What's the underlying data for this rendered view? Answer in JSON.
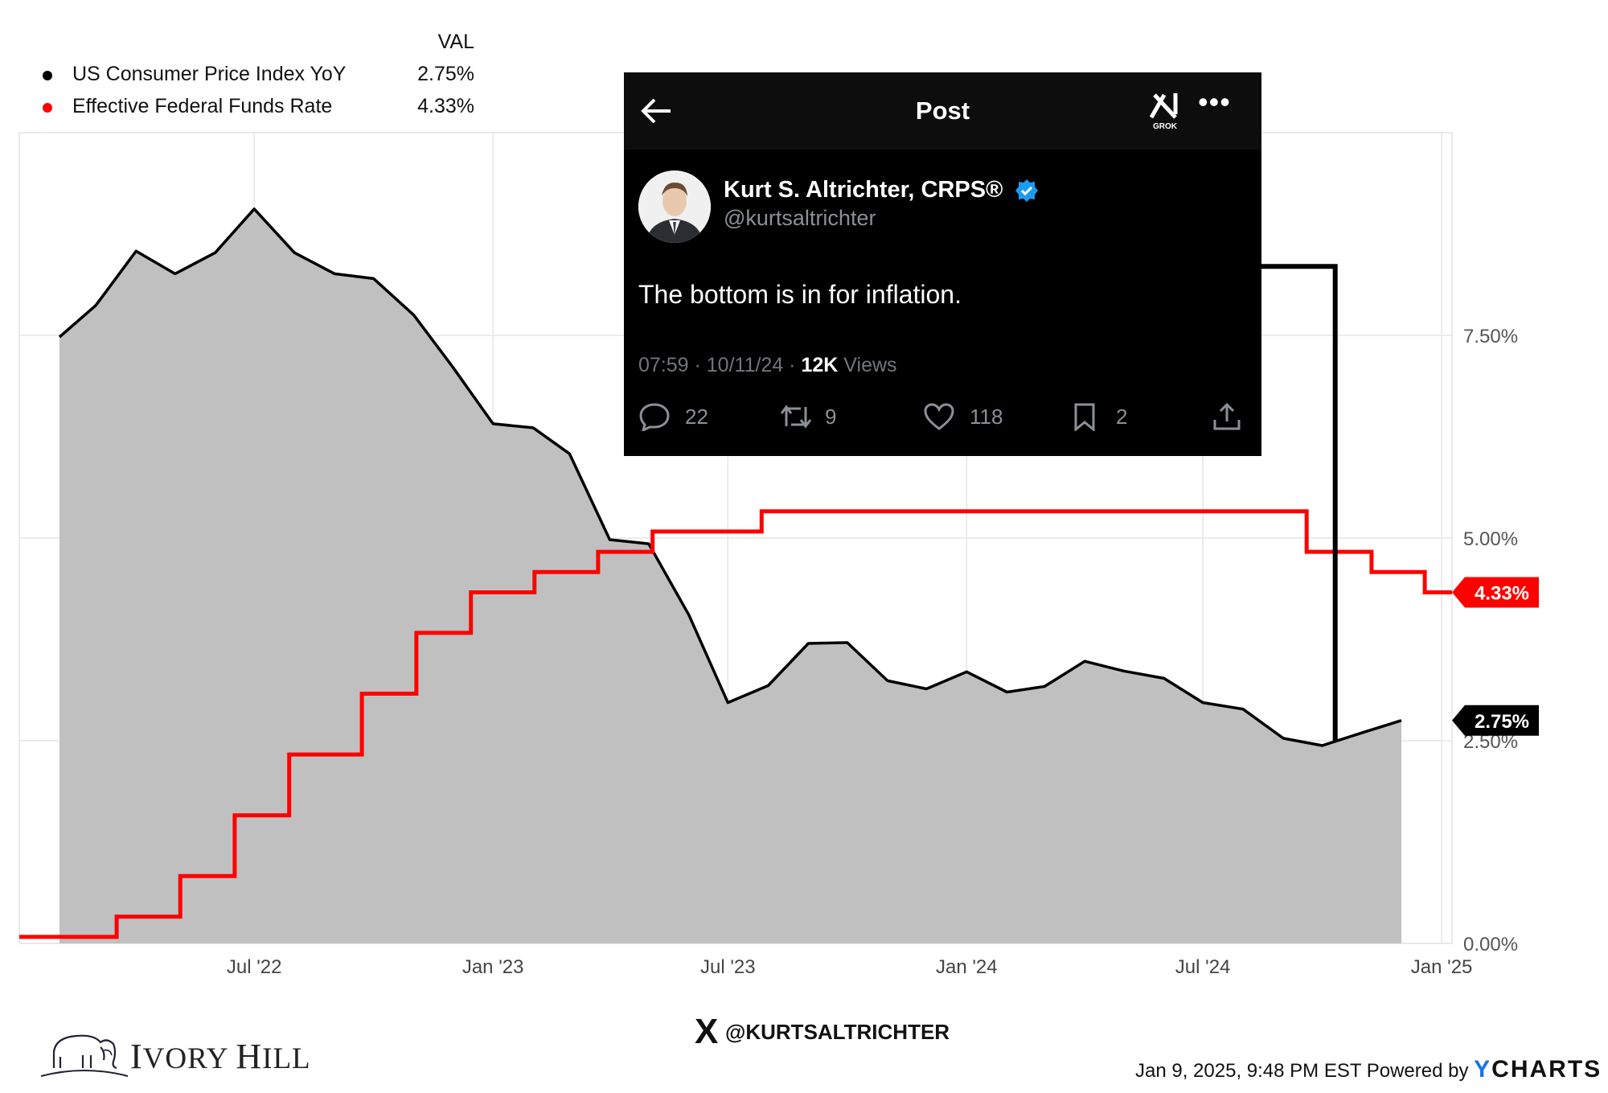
{
  "chart_data": {
    "type": "line",
    "title": "",
    "xlabel": "",
    "ylabel": "",
    "x_ticks": [
      "Jul '22",
      "Jan '23",
      "Jul '23",
      "Jan '24",
      "Jul '24",
      "Jan '25"
    ],
    "y_ticks": [
      "0.00%",
      "2.50%",
      "5.00%",
      "7.50%"
    ],
    "ylim": [
      0,
      10
    ],
    "grid": true,
    "legend_position": "top-left",
    "series": [
      {
        "name": "US Consumer Price Index YoY",
        "color": "#000000",
        "fill": "#c0c0c0",
        "last_value": "2.75%",
        "points": [
          [
            "2022-02-01",
            7.48
          ],
          [
            "2022-03-01",
            7.87
          ],
          [
            "2022-04-01",
            8.54
          ],
          [
            "2022-05-01",
            8.26
          ],
          [
            "2022-06-01",
            8.52
          ],
          [
            "2022-07-01",
            9.06
          ],
          [
            "2022-08-01",
            8.52
          ],
          [
            "2022-09-01",
            8.26
          ],
          [
            "2022-10-01",
            8.2
          ],
          [
            "2022-11-01",
            7.75
          ],
          [
            "2022-12-01",
            7.11
          ],
          [
            "2023-01-01",
            6.41
          ],
          [
            "2023-02-01",
            6.36
          ],
          [
            "2023-03-01",
            6.04
          ],
          [
            "2023-04-01",
            4.98
          ],
          [
            "2023-05-01",
            4.93
          ],
          [
            "2023-06-01",
            4.05
          ],
          [
            "2023-07-01",
            2.97
          ],
          [
            "2023-08-01",
            3.18
          ],
          [
            "2023-09-01",
            3.7
          ],
          [
            "2023-10-01",
            3.71
          ],
          [
            "2023-11-01",
            3.24
          ],
          [
            "2023-12-01",
            3.14
          ],
          [
            "2024-01-01",
            3.35
          ],
          [
            "2024-02-01",
            3.1
          ],
          [
            "2024-03-01",
            3.17
          ],
          [
            "2024-04-01",
            3.48
          ],
          [
            "2024-05-01",
            3.36
          ],
          [
            "2024-06-01",
            3.27
          ],
          [
            "2024-07-01",
            2.97
          ],
          [
            "2024-08-01",
            2.89
          ],
          [
            "2024-09-01",
            2.53
          ],
          [
            "2024-10-01",
            2.44
          ],
          [
            "2024-11-01",
            2.6
          ],
          [
            "2024-12-01",
            2.75
          ]
        ]
      },
      {
        "name": "Effective Federal Funds Rate",
        "color": "#ff0000",
        "last_value": "4.33%",
        "step": true,
        "points": [
          [
            "2022-01-01",
            0.08
          ],
          [
            "2022-03-17",
            0.33
          ],
          [
            "2022-05-05",
            0.83
          ],
          [
            "2022-06-16",
            1.58
          ],
          [
            "2022-07-28",
            2.33
          ],
          [
            "2022-09-22",
            3.08
          ],
          [
            "2022-11-03",
            3.83
          ],
          [
            "2022-12-15",
            4.33
          ],
          [
            "2023-02-02",
            4.58
          ],
          [
            "2023-03-23",
            4.83
          ],
          [
            "2023-05-04",
            5.08
          ],
          [
            "2023-07-27",
            5.33
          ],
          [
            "2024-09-19",
            4.83
          ],
          [
            "2024-11-08",
            4.58
          ],
          [
            "2024-12-19",
            4.33
          ],
          [
            "2025-01-09",
            4.33
          ]
        ]
      }
    ],
    "annotations": [
      {
        "type": "bracket-line",
        "color": "#000000",
        "from": [
          "2024-10-11",
          8.35
        ],
        "to": [
          "2024-10-11",
          2.5
        ]
      }
    ]
  },
  "legend": {
    "value_header": "VAL",
    "items": [
      {
        "name": "US Consumer Price Index YoY",
        "value": "2.75%",
        "color": "#000000"
      },
      {
        "name": "Effective Federal Funds Rate",
        "value": "4.33%",
        "color": "#ff0000"
      }
    ]
  },
  "tweet": {
    "header_title": "Post",
    "grok_label": "GROK",
    "author": "Kurt S. Altrichter, CRPS®",
    "handle": "@kurtsaltrichter",
    "text": "The bottom is in for inflation.",
    "time": "07:59 · 10/11/24 · ",
    "views_count": "12K",
    "views_label": " Views",
    "replies": "22",
    "reposts": "9",
    "likes": "118",
    "bookmarks": "2"
  },
  "branding": {
    "company": "Ivory Hill",
    "company_initial_1": "I",
    "company_rest_1": "VORY ",
    "company_initial_2": "H",
    "company_rest_2": "ILL",
    "x_mark": "X",
    "watermark_handle": "@KURTSALTRICHTER",
    "footer_date": "Jan 9, 2025, 9:48 PM EST Powered by ",
    "ycharts_y": "Y",
    "ycharts_rest": "CHARTS"
  }
}
